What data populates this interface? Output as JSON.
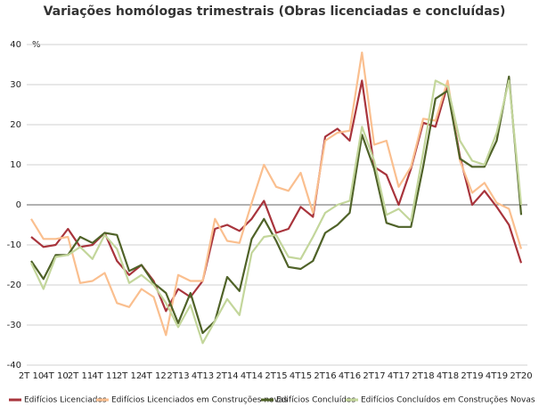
{
  "chart_data": {
    "type": "line",
    "title": "Variações homólogas trimestrais (Obras licenciadas e concluídas)",
    "y_unit": "%",
    "categories": [
      "2T 10",
      null,
      "4T 10",
      null,
      "2T 11",
      null,
      "4T 11",
      null,
      "2T 12",
      null,
      "4T 12",
      null,
      "2T13",
      null,
      "4T13",
      null,
      "2T14",
      null,
      "4T14",
      null,
      "2T15",
      null,
      "4T15",
      null,
      "2T16",
      null,
      "4T16",
      null,
      "2T17",
      null,
      "4T17",
      null,
      "2T18",
      null,
      "4T18",
      null,
      "2T19",
      null,
      "4T19",
      null,
      "2T20"
    ],
    "ylim": [
      -40,
      40
    ],
    "yticks": [
      -40,
      -30,
      -20,
      -10,
      0,
      10,
      20,
      30,
      40
    ],
    "grid": true,
    "legend": "bottom",
    "series": [
      {
        "name": "Edifícios Licenciados",
        "color": "#a8343c",
        "values": [
          -8,
          -10.5,
          -10,
          -6,
          -10.5,
          -10,
          -7,
          -14,
          -17.5,
          -15,
          -19,
          -26.5,
          -21,
          -23,
          -19,
          -6,
          -5,
          -6.5,
          -3.5,
          1,
          -7,
          -6,
          -0.5,
          -3,
          17,
          19,
          16,
          31,
          9.5,
          7.5,
          0,
          9,
          20.5,
          19.5,
          30,
          12,
          0,
          3.5,
          -0.5,
          -5,
          -14.5
        ]
      },
      {
        "name": "Edifícios Licenciados em Construções novas",
        "color": "#fabf8f",
        "values": [
          -3.5,
          -8.5,
          -8.5,
          -8,
          -19.5,
          -19,
          -17,
          -24.5,
          -25.5,
          -21,
          -23,
          -32.5,
          -17.5,
          -19,
          -19,
          -3.5,
          -9,
          -9.5,
          0.5,
          10,
          4.5,
          3.5,
          8,
          -2,
          16,
          18,
          18.5,
          38,
          15,
          16,
          4.5,
          9.5,
          21.5,
          21,
          31,
          11,
          3,
          5.5,
          0.5,
          -1,
          -11
        ]
      },
      {
        "name": "Edifícios Concluídos",
        "color": "#4f6228",
        "values": [
          -14,
          -18.5,
          -12.5,
          -12.5,
          -8,
          -9.5,
          -7,
          -7.5,
          -16.5,
          -15,
          -19.5,
          -22,
          -29.5,
          -22,
          -32,
          -29,
          -18,
          -21.5,
          -8.5,
          -3.5,
          -9,
          -15.5,
          -16,
          -14,
          -7,
          -5,
          -2,
          17.5,
          9,
          -4.5,
          -5.5,
          -5.5,
          9.5,
          26.5,
          28.5,
          11.5,
          9.5,
          9.5,
          16,
          32,
          -2.5
        ]
      },
      {
        "name": "Edifícios Concluídos em Construções Novas",
        "color": "#c3d69b",
        "values": [
          -14.5,
          -21,
          -13,
          -12.5,
          -10.5,
          -13.5,
          -7.5,
          -11,
          -19.5,
          -17.5,
          -20,
          -24.5,
          -30.5,
          -25,
          -34.5,
          -29,
          -23.5,
          -27.5,
          -12,
          -8,
          -7.5,
          -13,
          -13.5,
          -8,
          -2,
          0,
          1,
          19.5,
          11,
          -2.5,
          -1,
          -4,
          13,
          31,
          29.5,
          16,
          11,
          10,
          18,
          31,
          0
        ]
      }
    ]
  }
}
